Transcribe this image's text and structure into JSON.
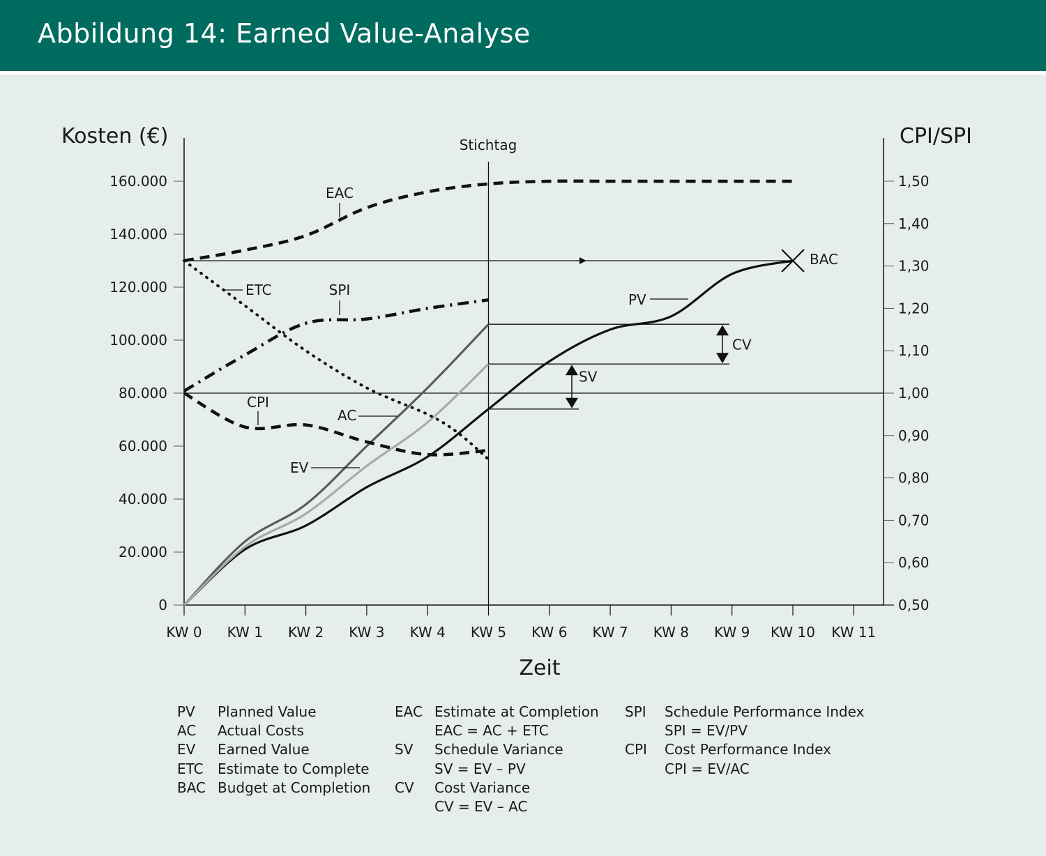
{
  "title": "Abbildung 14: Earned Value-Analyse",
  "chart_data": {
    "type": "line",
    "y_left_label": "Kosten (€)",
    "y_right_label": "CPI/SPI",
    "x_label": "Zeit",
    "x_categories": [
      "KW 0",
      "KW 1",
      "KW 2",
      "KW 3",
      "KW 4",
      "KW 5",
      "KW 6",
      "KW 7",
      "KW 8",
      "KW 9",
      "KW 10",
      "KW 11"
    ],
    "y_left_ticks": [
      {
        "value": 0,
        "label": "0"
      },
      {
        "value": 20000,
        "label": "20.000"
      },
      {
        "value": 40000,
        "label": "40.000"
      },
      {
        "value": 60000,
        "label": "60.000"
      },
      {
        "value": 80000,
        "label": "80.000"
      },
      {
        "value": 100000,
        "label": "100.000"
      },
      {
        "value": 120000,
        "label": "120.000"
      },
      {
        "value": 140000,
        "label": "140.000"
      },
      {
        "value": 160000,
        "label": "160.000"
      }
    ],
    "y_right_ticks": [
      {
        "value": 0.5,
        "label": "0,50"
      },
      {
        "value": 0.6,
        "label": "0,60"
      },
      {
        "value": 0.7,
        "label": "0,70"
      },
      {
        "value": 0.8,
        "label": "0,80"
      },
      {
        "value": 0.9,
        "label": "0,90"
      },
      {
        "value": 1.0,
        "label": "1,00"
      },
      {
        "value": 1.1,
        "label": "1,10"
      },
      {
        "value": 1.2,
        "label": "1,20"
      },
      {
        "value": 1.3,
        "label": "1,30"
      },
      {
        "value": 1.4,
        "label": "1,40"
      },
      {
        "value": 1.5,
        "label": "1,50"
      }
    ],
    "y_left_range": [
      0,
      160000
    ],
    "y_right_range": [
      0.5,
      1.5
    ],
    "reference_date": {
      "x": 5,
      "label": "Stichtag"
    },
    "bac": {
      "value": 130000,
      "x": 10,
      "label": "BAC"
    },
    "series": [
      {
        "name": "PV",
        "style": "solid-black",
        "axis": "left",
        "points": [
          [
            0,
            0
          ],
          [
            1,
            21000
          ],
          [
            2,
            30000
          ],
          [
            3,
            44500
          ],
          [
            4,
            56000
          ],
          [
            5,
            74000
          ],
          [
            6,
            92000
          ],
          [
            7,
            104000
          ],
          [
            8,
            109000
          ],
          [
            9,
            125000
          ],
          [
            10,
            130000
          ]
        ]
      },
      {
        "name": "AC",
        "style": "solid-darkgray",
        "axis": "left",
        "points": [
          [
            0,
            0
          ],
          [
            1,
            24000
          ],
          [
            2,
            38000
          ],
          [
            3,
            60000
          ],
          [
            4,
            82000
          ],
          [
            5,
            106000
          ]
        ]
      },
      {
        "name": "EV",
        "style": "solid-lightgray",
        "axis": "left",
        "points": [
          [
            0,
            0
          ],
          [
            1,
            22000
          ],
          [
            2,
            34500
          ],
          [
            3,
            52500
          ],
          [
            4,
            69000
          ],
          [
            5,
            91000
          ]
        ]
      },
      {
        "name": "EAC",
        "style": "dashed-thick",
        "axis": "left",
        "points": [
          [
            0,
            130000
          ],
          [
            1,
            134000
          ],
          [
            2,
            139500
          ],
          [
            3,
            150000
          ],
          [
            4,
            156000
          ],
          [
            5,
            159000
          ],
          [
            6,
            160000
          ],
          [
            7,
            160000
          ],
          [
            8,
            160000
          ],
          [
            9,
            160000
          ],
          [
            10,
            160000
          ]
        ]
      },
      {
        "name": "ETC",
        "style": "dotted",
        "axis": "left",
        "points": [
          [
            0,
            130000
          ],
          [
            1,
            113000
          ],
          [
            2,
            96000
          ],
          [
            3,
            82000
          ],
          [
            4,
            72000
          ],
          [
            4.5,
            65000
          ],
          [
            5,
            55000
          ]
        ]
      },
      {
        "name": "SPI",
        "style": "dash-dot",
        "axis": "right",
        "points": [
          [
            0,
            1.005
          ],
          [
            1,
            1.09
          ],
          [
            2,
            1.165
          ],
          [
            3,
            1.175
          ],
          [
            4,
            1.2
          ],
          [
            5,
            1.22
          ]
        ]
      },
      {
        "name": "CPI",
        "style": "dashed-thick",
        "axis": "right",
        "points": [
          [
            0,
            1.0
          ],
          [
            1,
            0.92
          ],
          [
            2,
            0.925
          ],
          [
            3,
            0.885
          ],
          [
            4,
            0.855
          ],
          [
            5,
            0.865
          ]
        ]
      }
    ],
    "annotations": [
      {
        "label": "CV",
        "between": [
          "AC",
          "EV"
        ],
        "x": 5
      },
      {
        "label": "SV",
        "between": [
          "EV",
          "PV"
        ],
        "x": 5
      }
    ],
    "line_labels": [
      "EAC",
      "ETC",
      "SPI",
      "CPI",
      "AC",
      "EV",
      "PV"
    ]
  },
  "legend": [
    {
      "rows": [
        {
          "abbr": "PV",
          "desc": "Planned Value"
        },
        {
          "abbr": "AC",
          "desc": "Actual Costs"
        },
        {
          "abbr": "EV",
          "desc": "Earned Value"
        },
        {
          "abbr": "ETC",
          "desc": "Estimate to Complete"
        },
        {
          "abbr": "BAC",
          "desc": "Budget at Completion"
        }
      ]
    },
    {
      "rows": [
        {
          "abbr": "EAC",
          "desc": "Estimate at Completion"
        },
        {
          "abbr": "",
          "desc": "EAC = AC + ETC"
        },
        {
          "abbr": "SV",
          "desc": "Schedule Variance"
        },
        {
          "abbr": "",
          "desc": "SV = EV – PV"
        },
        {
          "abbr": "CV",
          "desc": "Cost Variance"
        },
        {
          "abbr": "",
          "desc": "CV = EV – AC"
        }
      ]
    },
    {
      "rows": [
        {
          "abbr": "SPI",
          "desc": "Schedule Performance Index"
        },
        {
          "abbr": "",
          "desc": "SPI = EV/PV"
        },
        {
          "abbr": "CPI",
          "desc": "Cost Performance Index"
        },
        {
          "abbr": "",
          "desc": "CPI = EV/AC"
        }
      ]
    }
  ]
}
